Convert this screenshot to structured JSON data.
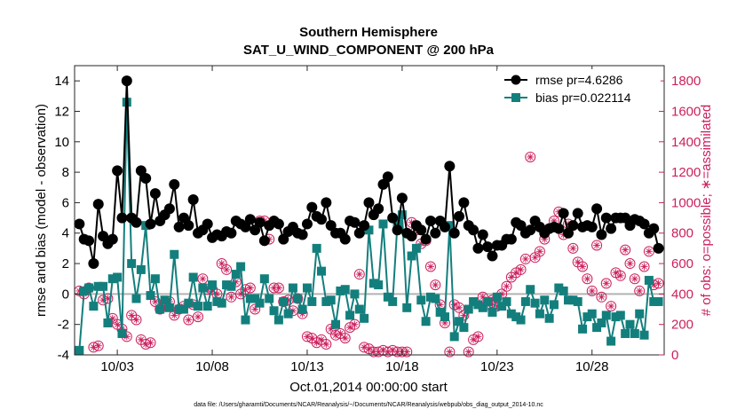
{
  "chart_data": {
    "type": "line",
    "title": "Southern Hemisphere",
    "subtitle": "SAT_U_WIND_COMPONENT @ 200 hPa",
    "xlabel": "Oct.01,2014 00:00:00 start",
    "ylabel": "rmse and bias (model - observation)",
    "ylabel_right": "# of obs: o=possible; ∗=assimilated",
    "footnote": "data file: /Users/gharamti/Documents/NCAR/Reanalysis/~/Documents/NCAR/Reanalysis/webpub/obs_diag_output_2014-10.nc",
    "xlim": [
      0.75,
      31.8
    ],
    "ylim": [
      -4,
      15
    ],
    "ylim_right": [
      0,
      1900
    ],
    "x_ticks": [
      3,
      8,
      13,
      18,
      23,
      28
    ],
    "x_tick_labels": [
      "10/03",
      "10/08",
      "10/13",
      "10/18",
      "10/23",
      "10/28"
    ],
    "y_ticks": [
      -4,
      -2,
      0,
      2,
      4,
      6,
      8,
      10,
      12,
      14
    ],
    "y_tick_labels": [
      "-4",
      "-2",
      "0",
      "2",
      "4",
      "6",
      "8",
      "10",
      "12",
      "14"
    ],
    "y_ticks_right": [
      0,
      200,
      400,
      600,
      800,
      1000,
      1200,
      1400,
      1600,
      1800
    ],
    "y_tick_labels_right": [
      "0",
      "200",
      "400",
      "600",
      "800",
      "1000",
      "1200",
      "1400",
      "1600",
      "1800"
    ],
    "zero_line": 0,
    "colors": {
      "rmse": "#000000",
      "bias": "#137f7d",
      "obs": "#cc1f5d",
      "zero": "#b3b3b3"
    },
    "series": [
      {
        "name": "rmse",
        "legend": "rmse pr=4.6286",
        "marker": "circle",
        "color": "#000000",
        "x": [
          1.0,
          1.25,
          1.5,
          1.75,
          2.0,
          2.25,
          2.5,
          2.75,
          3.0,
          3.25,
          3.5,
          3.75,
          4.0,
          4.25,
          4.5,
          4.75,
          5.0,
          5.25,
          5.5,
          5.75,
          6.0,
          6.25,
          6.5,
          6.75,
          7.0,
          7.25,
          7.5,
          7.75,
          8.0,
          8.25,
          8.5,
          8.75,
          9.0,
          9.25,
          9.5,
          9.75,
          10.0,
          10.25,
          10.5,
          10.75,
          11.0,
          11.25,
          11.5,
          11.75,
          12.0,
          12.25,
          12.5,
          12.75,
          13.0,
          13.25,
          13.5,
          13.75,
          14.0,
          14.25,
          14.5,
          14.75,
          15.0,
          15.25,
          15.5,
          15.75,
          16.0,
          16.25,
          16.5,
          16.75,
          17.0,
          17.25,
          17.5,
          17.75,
          18.0,
          18.25,
          18.5,
          18.75,
          19.0,
          19.25,
          19.5,
          19.75,
          20.0,
          20.25,
          20.5,
          20.75,
          21.0,
          21.25,
          21.5,
          21.75,
          22.0,
          22.25,
          22.5,
          22.75,
          23.0,
          23.25,
          23.5,
          23.75,
          24.0,
          24.25,
          24.5,
          24.75,
          25.0,
          25.25,
          25.5,
          25.75,
          26.0,
          26.25,
          26.5,
          26.75,
          27.0,
          27.25,
          27.5,
          27.75,
          28.0,
          28.25,
          28.5,
          28.75,
          29.0,
          29.25,
          29.5,
          29.75,
          30.0,
          30.25,
          30.5,
          30.75,
          31.0,
          31.25,
          31.5
        ],
        "values": [
          4.6,
          3.6,
          3.5,
          2.0,
          5.9,
          3.8,
          3.3,
          3.6,
          8.1,
          5.0,
          14.0,
          5.0,
          4.7,
          8.1,
          7.6,
          4.6,
          6.6,
          4.8,
          5.2,
          5.6,
          7.2,
          4.4,
          5.0,
          4.5,
          6.2,
          4.0,
          4.2,
          4.6,
          3.7,
          3.9,
          3.8,
          4.1,
          4.0,
          4.8,
          4.6,
          4.4,
          4.9,
          4.2,
          4.7,
          3.5,
          4.5,
          4.8,
          4.6,
          3.6,
          4.1,
          4.4,
          4.0,
          3.9,
          4.6,
          5.7,
          5.1,
          4.9,
          6.0,
          4.5,
          4.0,
          4.0,
          3.6,
          4.8,
          4.7,
          4.0,
          4.5,
          6.0,
          5.2,
          5.6,
          7.2,
          7.7,
          5.0,
          4.2,
          6.3,
          4.0,
          3.8,
          4.5,
          4.2,
          3.6,
          4.8,
          4.0,
          4.8,
          4.4,
          8.4,
          4.0,
          5.1,
          6.0,
          4.5,
          4.2,
          3.0,
          3.9,
          3.1,
          2.5,
          3.2,
          3.2,
          3.6,
          3.6,
          4.7,
          4.5,
          4.0,
          4.2,
          4.8,
          4.4,
          4.0,
          4.3,
          4.4,
          4.3,
          5.3,
          4.0,
          4.5,
          5.3,
          4.4,
          4.5,
          4.4,
          5.6,
          3.9,
          5.0,
          4.3,
          5.0,
          5.0,
          5.0,
          4.5,
          4.9,
          4.8,
          4.6,
          4.0,
          4.3,
          3.0
        ]
      },
      {
        "name": "bias",
        "legend": "bias pr=0.022114",
        "marker": "square",
        "color": "#137f7d",
        "x": [
          1.0,
          1.25,
          1.5,
          1.75,
          2.0,
          2.25,
          2.5,
          2.75,
          3.0,
          3.25,
          3.5,
          3.75,
          4.0,
          4.25,
          4.5,
          4.75,
          5.0,
          5.25,
          5.5,
          5.75,
          6.0,
          6.25,
          6.5,
          6.75,
          7.0,
          7.25,
          7.5,
          7.75,
          8.0,
          8.25,
          8.5,
          8.75,
          9.0,
          9.25,
          9.5,
          9.75,
          10.0,
          10.25,
          10.5,
          10.75,
          11.0,
          11.25,
          11.5,
          11.75,
          12.0,
          12.25,
          12.5,
          12.75,
          13.0,
          13.25,
          13.5,
          13.75,
          14.0,
          14.25,
          14.5,
          14.75,
          15.0,
          15.25,
          15.5,
          15.75,
          16.0,
          16.25,
          16.5,
          16.75,
          17.0,
          17.25,
          17.5,
          17.75,
          18.0,
          18.25,
          18.5,
          18.75,
          19.0,
          19.25,
          19.5,
          19.75,
          20.0,
          20.25,
          20.5,
          20.75,
          21.0,
          21.25,
          21.5,
          21.75,
          22.0,
          22.25,
          22.5,
          22.75,
          23.0,
          23.25,
          23.5,
          23.75,
          24.0,
          24.25,
          24.5,
          24.75,
          25.0,
          25.25,
          25.5,
          25.75,
          26.0,
          26.25,
          26.5,
          26.75,
          27.0,
          27.25,
          27.5,
          27.75,
          28.0,
          28.25,
          28.5,
          28.75,
          29.0,
          29.25,
          29.5,
          29.75,
          30.0,
          30.25,
          30.5,
          30.75,
          31.0,
          31.25,
          31.5
        ],
        "values": [
          -3.7,
          0.2,
          0.4,
          -0.8,
          0.5,
          0.5,
          -1.9,
          1.0,
          1.1,
          -2.6,
          12.6,
          2.0,
          -0.3,
          1.6,
          4.5,
          -0.1,
          1.0,
          -1.0,
          -0.4,
          -0.9,
          2.6,
          -1.0,
          -1.0,
          -0.6,
          1.1,
          -0.8,
          0.4,
          -0.8,
          0.6,
          -0.5,
          -0.6,
          0.6,
          0.5,
          1.3,
          1.8,
          -1.7,
          -0.3,
          -0.3,
          -0.6,
          1.0,
          -0.3,
          -1.1,
          -1.7,
          -0.5,
          -1.3,
          0.4,
          -0.3,
          -1.0,
          0.4,
          -0.5,
          3.0,
          1.5,
          -0.5,
          -0.4,
          -2.0,
          0.2,
          0.3,
          -1.4,
          0.0,
          -1.0,
          -1.6,
          4.2,
          0.7,
          0.6,
          4.6,
          -0.2,
          -0.5,
          4.6,
          5.2,
          -0.9,
          2.5,
          3.0,
          -0.4,
          -1.8,
          -0.2,
          -0.3,
          -1.2,
          -1.5,
          4.5,
          -2.8,
          -1.8,
          -2.2,
          -1.0,
          -0.5,
          -0.7,
          -0.9,
          -0.5,
          -1.2,
          -0.2,
          -0.8,
          -0.5,
          -1.3,
          -1.5,
          -1.7,
          -0.5,
          0.3,
          -0.6,
          -1.3,
          -0.4,
          -1.6,
          -0.7,
          0.4,
          0.2,
          -0.4,
          -0.4,
          -0.5,
          -2.3,
          -1.5,
          -1.3,
          -2.2,
          -1.9,
          -1.4,
          -3.1,
          -1.5,
          -1.4,
          -2.6,
          -2.0,
          -2.6,
          -1.3,
          -2.7,
          0.9,
          -0.5,
          -0.5
        ]
      },
      {
        "name": "obs_possible",
        "marker": "open-circle",
        "color": "#cc1f5d",
        "x": [
          1.0,
          1.25,
          1.5,
          1.75,
          2.0,
          2.25,
          2.5,
          2.75,
          3.0,
          3.25,
          3.5,
          3.75,
          4.0,
          4.25,
          4.5,
          4.75,
          5.0,
          5.25,
          5.5,
          5.75,
          6.0,
          6.25,
          6.5,
          6.75,
          7.0,
          7.25,
          7.5,
          7.75,
          8.0,
          8.25,
          8.5,
          8.75,
          9.0,
          9.25,
          9.5,
          9.75,
          10.0,
          10.25,
          10.5,
          10.75,
          11.0,
          11.25,
          11.5,
          11.75,
          12.0,
          12.25,
          12.5,
          12.75,
          13.0,
          13.25,
          13.5,
          13.75,
          14.0,
          14.25,
          14.5,
          14.75,
          15.0,
          15.25,
          15.5,
          15.75,
          16.0,
          16.25,
          16.5,
          16.75,
          17.0,
          17.25,
          17.5,
          17.75,
          18.0,
          18.25,
          18.5,
          18.75,
          19.0,
          19.25,
          19.5,
          19.75,
          20.0,
          20.25,
          20.5,
          20.75,
          21.0,
          21.25,
          21.5,
          21.75,
          22.0,
          22.25,
          22.5,
          22.75,
          23.0,
          23.25,
          23.5,
          23.75,
          24.0,
          24.25,
          24.5,
          24.75,
          25.0,
          25.25,
          25.5,
          25.75,
          26.0,
          26.25,
          26.5,
          26.75,
          27.0,
          27.25,
          27.5,
          27.75,
          28.0,
          28.25,
          28.5,
          28.75,
          29.0,
          29.25,
          29.5,
          29.75,
          30.0,
          30.25,
          30.5,
          30.75,
          31.0,
          31.25,
          31.5
        ],
        "values": [
          420,
          400,
          440,
          50,
          60,
          360,
          370,
          240,
          200,
          170,
          120,
          260,
          230,
          100,
          70,
          80,
          350,
          300,
          320,
          350,
          260,
          300,
          320,
          230,
          330,
          250,
          500,
          430,
          430,
          400,
          600,
          560,
          380,
          480,
          400,
          430,
          440,
          300,
          880,
          880,
          760,
          440,
          440,
          350,
          360,
          290,
          370,
          270,
          120,
          110,
          80,
          100,
          70,
          170,
          130,
          140,
          110,
          180,
          200,
          530,
          50,
          40,
          20,
          20,
          30,
          20,
          30,
          20,
          20,
          20,
          870,
          820,
          730,
          750,
          580,
          460,
          330,
          210,
          20,
          330,
          310,
          260,
          20,
          100,
          120,
          380,
          330,
          360,
          320,
          400,
          450,
          510,
          540,
          560,
          630,
          1300,
          640,
          680,
          760,
          830,
          880,
          940,
          790,
          860,
          700,
          610,
          580,
          500,
          420,
          720,
          380,
          470,
          320,
          540,
          520,
          690,
          600,
          500,
          420,
          580,
          680,
          460,
          470
        ]
      },
      {
        "name": "obs_assimilated",
        "marker": "asterisk",
        "color": "#cc1f5d",
        "x": [
          1.0,
          1.25,
          1.5,
          1.75,
          2.0,
          2.25,
          2.5,
          2.75,
          3.0,
          3.25,
          3.5,
          3.75,
          4.0,
          4.25,
          4.5,
          4.75,
          5.0,
          5.25,
          5.5,
          5.75,
          6.0,
          6.25,
          6.5,
          6.75,
          7.0,
          7.25,
          7.5,
          7.75,
          8.0,
          8.25,
          8.5,
          8.75,
          9.0,
          9.25,
          9.5,
          9.75,
          10.0,
          10.25,
          10.5,
          10.75,
          11.0,
          11.25,
          11.5,
          11.75,
          12.0,
          12.25,
          12.5,
          12.75,
          13.0,
          13.25,
          13.5,
          13.75,
          14.0,
          14.25,
          14.5,
          14.75,
          15.0,
          15.25,
          15.5,
          15.75,
          16.0,
          16.25,
          16.5,
          16.75,
          17.0,
          17.25,
          17.5,
          17.75,
          18.0,
          18.25,
          18.5,
          18.75,
          19.0,
          19.25,
          19.5,
          19.75,
          20.0,
          20.25,
          20.5,
          20.75,
          21.0,
          21.25,
          21.5,
          21.75,
          22.0,
          22.25,
          22.5,
          22.75,
          23.0,
          23.25,
          23.5,
          23.75,
          24.0,
          24.25,
          24.5,
          24.75,
          25.0,
          25.25,
          25.5,
          25.75,
          26.0,
          26.25,
          26.5,
          26.75,
          27.0,
          27.25,
          27.5,
          27.75,
          28.0,
          28.25,
          28.5,
          28.75,
          29.0,
          29.25,
          29.5,
          29.75,
          30.0,
          30.25,
          30.5,
          30.75,
          31.0,
          31.25,
          31.5
        ],
        "values": [
          420,
          400,
          440,
          50,
          60,
          360,
          370,
          240,
          200,
          170,
          120,
          260,
          230,
          100,
          70,
          80,
          350,
          300,
          320,
          350,
          260,
          300,
          320,
          230,
          330,
          250,
          500,
          430,
          430,
          400,
          600,
          560,
          380,
          480,
          400,
          430,
          440,
          300,
          880,
          880,
          760,
          440,
          440,
          350,
          360,
          290,
          370,
          270,
          120,
          110,
          80,
          100,
          70,
          170,
          130,
          140,
          110,
          180,
          200,
          530,
          50,
          40,
          20,
          20,
          30,
          20,
          30,
          20,
          20,
          20,
          870,
          820,
          730,
          750,
          580,
          460,
          330,
          210,
          20,
          330,
          310,
          260,
          20,
          100,
          120,
          380,
          330,
          360,
          320,
          400,
          450,
          510,
          540,
          560,
          630,
          1300,
          640,
          680,
          760,
          830,
          880,
          940,
          790,
          860,
          700,
          610,
          580,
          500,
          420,
          720,
          380,
          470,
          320,
          540,
          520,
          690,
          600,
          500,
          420,
          580,
          680,
          460,
          470
        ]
      }
    ]
  }
}
